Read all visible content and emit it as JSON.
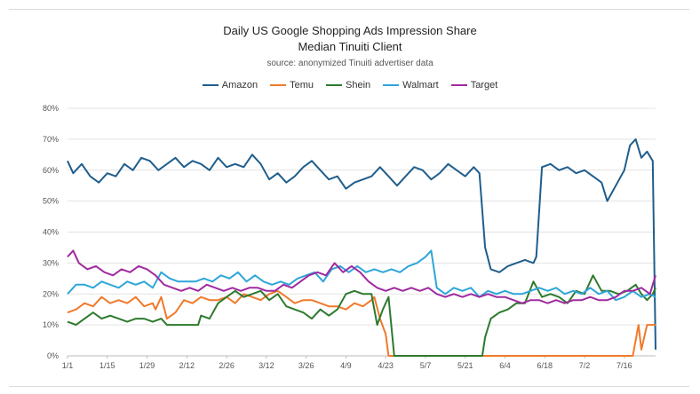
{
  "chart_data": {
    "type": "line",
    "title": "Daily US Google Shopping Ads Impression Share",
    "subtitle": "Median Tinuiti Client",
    "source": "source: anonymized Tinuiti advertiser data",
    "xlabel": "",
    "ylabel": "",
    "x_tick_labels": [
      "1/1",
      "1/15",
      "1/29",
      "2/12",
      "2/26",
      "3/12",
      "3/26",
      "4/9",
      "4/23",
      "5/7",
      "5/21",
      "6/4",
      "6/18",
      "7/2",
      "7/16"
    ],
    "y_tick_labels": [
      "0%",
      "10%",
      "20%",
      "30%",
      "40%",
      "50%",
      "60%",
      "70%",
      "80%"
    ],
    "ylim": [
      0,
      80
    ],
    "x_day_range": [
      1,
      208
    ],
    "legend_position": "top-center",
    "series": [
      {
        "name": "Amazon",
        "color": "#1f5e8c",
        "points": [
          [
            1,
            63
          ],
          [
            3,
            59
          ],
          [
            6,
            62
          ],
          [
            9,
            58
          ],
          [
            12,
            56
          ],
          [
            15,
            59
          ],
          [
            18,
            58
          ],
          [
            21,
            62
          ],
          [
            24,
            60
          ],
          [
            27,
            64
          ],
          [
            30,
            63
          ],
          [
            33,
            60
          ],
          [
            36,
            62
          ],
          [
            39,
            64
          ],
          [
            42,
            61
          ],
          [
            45,
            63
          ],
          [
            48,
            62
          ],
          [
            51,
            60
          ],
          [
            54,
            64
          ],
          [
            57,
            61
          ],
          [
            60,
            62
          ],
          [
            63,
            61
          ],
          [
            66,
            65
          ],
          [
            69,
            62
          ],
          [
            72,
            57
          ],
          [
            75,
            59
          ],
          [
            78,
            56
          ],
          [
            81,
            58
          ],
          [
            84,
            61
          ],
          [
            87,
            63
          ],
          [
            90,
            60
          ],
          [
            93,
            57
          ],
          [
            96,
            58
          ],
          [
            99,
            54
          ],
          [
            102,
            56
          ],
          [
            105,
            57
          ],
          [
            108,
            58
          ],
          [
            111,
            61
          ],
          [
            114,
            58
          ],
          [
            117,
            55
          ],
          [
            120,
            58
          ],
          [
            123,
            61
          ],
          [
            126,
            60
          ],
          [
            129,
            57
          ],
          [
            132,
            59
          ],
          [
            135,
            62
          ],
          [
            138,
            60
          ],
          [
            141,
            58
          ],
          [
            144,
            61
          ],
          [
            146,
            59
          ],
          [
            148,
            35
          ],
          [
            150,
            28
          ],
          [
            153,
            27
          ],
          [
            156,
            29
          ],
          [
            159,
            30
          ],
          [
            162,
            31
          ],
          [
            165,
            30
          ],
          [
            166,
            32
          ],
          [
            168,
            61
          ],
          [
            171,
            62
          ],
          [
            174,
            60
          ],
          [
            177,
            61
          ],
          [
            180,
            59
          ],
          [
            183,
            60
          ],
          [
            186,
            58
          ],
          [
            189,
            56
          ],
          [
            191,
            50
          ],
          [
            194,
            55
          ],
          [
            197,
            60
          ],
          [
            199,
            68
          ],
          [
            201,
            70
          ],
          [
            203,
            64
          ],
          [
            205,
            66
          ],
          [
            207,
            63
          ],
          [
            208,
            2
          ]
        ]
      },
      {
        "name": "Temu",
        "color": "#f07a2a",
        "points": [
          [
            1,
            14
          ],
          [
            4,
            15
          ],
          [
            7,
            17
          ],
          [
            10,
            16
          ],
          [
            13,
            19
          ],
          [
            16,
            17
          ],
          [
            19,
            18
          ],
          [
            22,
            17
          ],
          [
            25,
            19
          ],
          [
            28,
            16
          ],
          [
            31,
            17
          ],
          [
            32,
            15
          ],
          [
            34,
            19
          ],
          [
            36,
            12
          ],
          [
            39,
            14
          ],
          [
            42,
            18
          ],
          [
            45,
            17
          ],
          [
            48,
            19
          ],
          [
            51,
            18
          ],
          [
            54,
            18
          ],
          [
            57,
            19
          ],
          [
            60,
            17
          ],
          [
            63,
            20
          ],
          [
            66,
            19
          ],
          [
            69,
            18
          ],
          [
            72,
            20
          ],
          [
            75,
            21
          ],
          [
            78,
            19
          ],
          [
            81,
            17
          ],
          [
            84,
            18
          ],
          [
            87,
            18
          ],
          [
            90,
            17
          ],
          [
            93,
            16
          ],
          [
            96,
            16
          ],
          [
            99,
            15
          ],
          [
            102,
            17
          ],
          [
            105,
            16
          ],
          [
            108,
            18
          ],
          [
            109,
            19
          ],
          [
            111,
            12
          ],
          [
            113,
            7
          ],
          [
            114,
            0
          ],
          [
            150,
            0
          ],
          [
            180,
            0
          ],
          [
            200,
            0
          ],
          [
            202,
            10
          ],
          [
            203,
            2
          ],
          [
            205,
            10
          ],
          [
            208,
            10
          ]
        ]
      },
      {
        "name": "Shein",
        "color": "#2e7a2e",
        "points": [
          [
            1,
            11
          ],
          [
            4,
            10
          ],
          [
            7,
            12
          ],
          [
            10,
            14
          ],
          [
            13,
            12
          ],
          [
            16,
            13
          ],
          [
            19,
            12
          ],
          [
            22,
            11
          ],
          [
            25,
            12
          ],
          [
            28,
            12
          ],
          [
            31,
            11
          ],
          [
            34,
            12
          ],
          [
            36,
            10
          ],
          [
            41,
            10
          ],
          [
            47,
            10
          ],
          [
            48,
            13
          ],
          [
            51,
            12
          ],
          [
            54,
            17
          ],
          [
            57,
            19
          ],
          [
            60,
            21
          ],
          [
            63,
            19
          ],
          [
            66,
            20
          ],
          [
            69,
            21
          ],
          [
            72,
            18
          ],
          [
            75,
            20
          ],
          [
            78,
            16
          ],
          [
            81,
            15
          ],
          [
            84,
            14
          ],
          [
            87,
            12
          ],
          [
            90,
            15
          ],
          [
            93,
            13
          ],
          [
            96,
            15
          ],
          [
            99,
            20
          ],
          [
            102,
            21
          ],
          [
            105,
            20
          ],
          [
            108,
            20
          ],
          [
            110,
            10
          ],
          [
            112,
            15
          ],
          [
            114,
            19
          ],
          [
            116,
            0
          ],
          [
            130,
            0
          ],
          [
            145,
            0
          ],
          [
            147,
            0
          ],
          [
            148,
            6
          ],
          [
            150,
            12
          ],
          [
            153,
            14
          ],
          [
            156,
            15
          ],
          [
            159,
            17
          ],
          [
            162,
            17
          ],
          [
            165,
            24
          ],
          [
            168,
            19
          ],
          [
            171,
            20
          ],
          [
            174,
            19
          ],
          [
            177,
            17
          ],
          [
            180,
            21
          ],
          [
            183,
            20
          ],
          [
            186,
            26
          ],
          [
            189,
            21
          ],
          [
            192,
            21
          ],
          [
            195,
            20
          ],
          [
            198,
            21
          ],
          [
            201,
            23
          ],
          [
            203,
            20
          ],
          [
            205,
            18
          ],
          [
            207,
            20
          ],
          [
            208,
            22
          ]
        ]
      },
      {
        "name": "Walmart",
        "color": "#2ea6d9",
        "points": [
          [
            1,
            20
          ],
          [
            4,
            23
          ],
          [
            7,
            23
          ],
          [
            10,
            22
          ],
          [
            13,
            24
          ],
          [
            16,
            23
          ],
          [
            19,
            22
          ],
          [
            22,
            24
          ],
          [
            25,
            23
          ],
          [
            28,
            24
          ],
          [
            31,
            22
          ],
          [
            34,
            27
          ],
          [
            37,
            25
          ],
          [
            40,
            24
          ],
          [
            43,
            24
          ],
          [
            46,
            24
          ],
          [
            49,
            25
          ],
          [
            52,
            24
          ],
          [
            55,
            26
          ],
          [
            58,
            25
          ],
          [
            61,
            27
          ],
          [
            64,
            24
          ],
          [
            67,
            26
          ],
          [
            70,
            24
          ],
          [
            73,
            23
          ],
          [
            76,
            24
          ],
          [
            79,
            23
          ],
          [
            82,
            25
          ],
          [
            85,
            26
          ],
          [
            88,
            27
          ],
          [
            91,
            24
          ],
          [
            94,
            28
          ],
          [
            97,
            29
          ],
          [
            100,
            27
          ],
          [
            103,
            29
          ],
          [
            106,
            27
          ],
          [
            109,
            28
          ],
          [
            112,
            27
          ],
          [
            115,
            28
          ],
          [
            118,
            27
          ],
          [
            121,
            29
          ],
          [
            124,
            30
          ],
          [
            127,
            32
          ],
          [
            129,
            34
          ],
          [
            131,
            22
          ],
          [
            134,
            20
          ],
          [
            137,
            22
          ],
          [
            140,
            21
          ],
          [
            143,
            22
          ],
          [
            146,
            19
          ],
          [
            149,
            21
          ],
          [
            152,
            20
          ],
          [
            155,
            21
          ],
          [
            158,
            20
          ],
          [
            161,
            20
          ],
          [
            164,
            21
          ],
          [
            167,
            22
          ],
          [
            170,
            21
          ],
          [
            173,
            22
          ],
          [
            176,
            20
          ],
          [
            179,
            21
          ],
          [
            182,
            20
          ],
          [
            185,
            22
          ],
          [
            188,
            20
          ],
          [
            191,
            21
          ],
          [
            194,
            18
          ],
          [
            197,
            19
          ],
          [
            200,
            21
          ],
          [
            203,
            19
          ],
          [
            206,
            20
          ],
          [
            208,
            19
          ]
        ]
      },
      {
        "name": "Target",
        "color": "#a02aa0",
        "points": [
          [
            1,
            32
          ],
          [
            3,
            34
          ],
          [
            5,
            30
          ],
          [
            8,
            28
          ],
          [
            11,
            29
          ],
          [
            14,
            27
          ],
          [
            17,
            26
          ],
          [
            20,
            28
          ],
          [
            23,
            27
          ],
          [
            26,
            29
          ],
          [
            29,
            28
          ],
          [
            32,
            26
          ],
          [
            35,
            23
          ],
          [
            38,
            22
          ],
          [
            41,
            21
          ],
          [
            44,
            22
          ],
          [
            47,
            21
          ],
          [
            50,
            23
          ],
          [
            53,
            22
          ],
          [
            56,
            21
          ],
          [
            59,
            22
          ],
          [
            62,
            21
          ],
          [
            65,
            22
          ],
          [
            68,
            22
          ],
          [
            71,
            21
          ],
          [
            74,
            21
          ],
          [
            77,
            23
          ],
          [
            80,
            22
          ],
          [
            83,
            24
          ],
          [
            86,
            26
          ],
          [
            89,
            27
          ],
          [
            92,
            26
          ],
          [
            95,
            30
          ],
          [
            98,
            27
          ],
          [
            101,
            29
          ],
          [
            104,
            27
          ],
          [
            107,
            24
          ],
          [
            110,
            22
          ],
          [
            113,
            21
          ],
          [
            116,
            22
          ],
          [
            119,
            21
          ],
          [
            122,
            22
          ],
          [
            125,
            21
          ],
          [
            128,
            22
          ],
          [
            131,
            20
          ],
          [
            134,
            19
          ],
          [
            137,
            20
          ],
          [
            140,
            19
          ],
          [
            143,
            20
          ],
          [
            146,
            19
          ],
          [
            149,
            20
          ],
          [
            152,
            19
          ],
          [
            155,
            19
          ],
          [
            158,
            18
          ],
          [
            161,
            17
          ],
          [
            164,
            18
          ],
          [
            167,
            18
          ],
          [
            170,
            17
          ],
          [
            173,
            18
          ],
          [
            176,
            17
          ],
          [
            179,
            18
          ],
          [
            182,
            18
          ],
          [
            185,
            19
          ],
          [
            188,
            18
          ],
          [
            191,
            18
          ],
          [
            194,
            19
          ],
          [
            197,
            21
          ],
          [
            200,
            21
          ],
          [
            203,
            22
          ],
          [
            206,
            20
          ],
          [
            208,
            26
          ]
        ]
      }
    ]
  }
}
